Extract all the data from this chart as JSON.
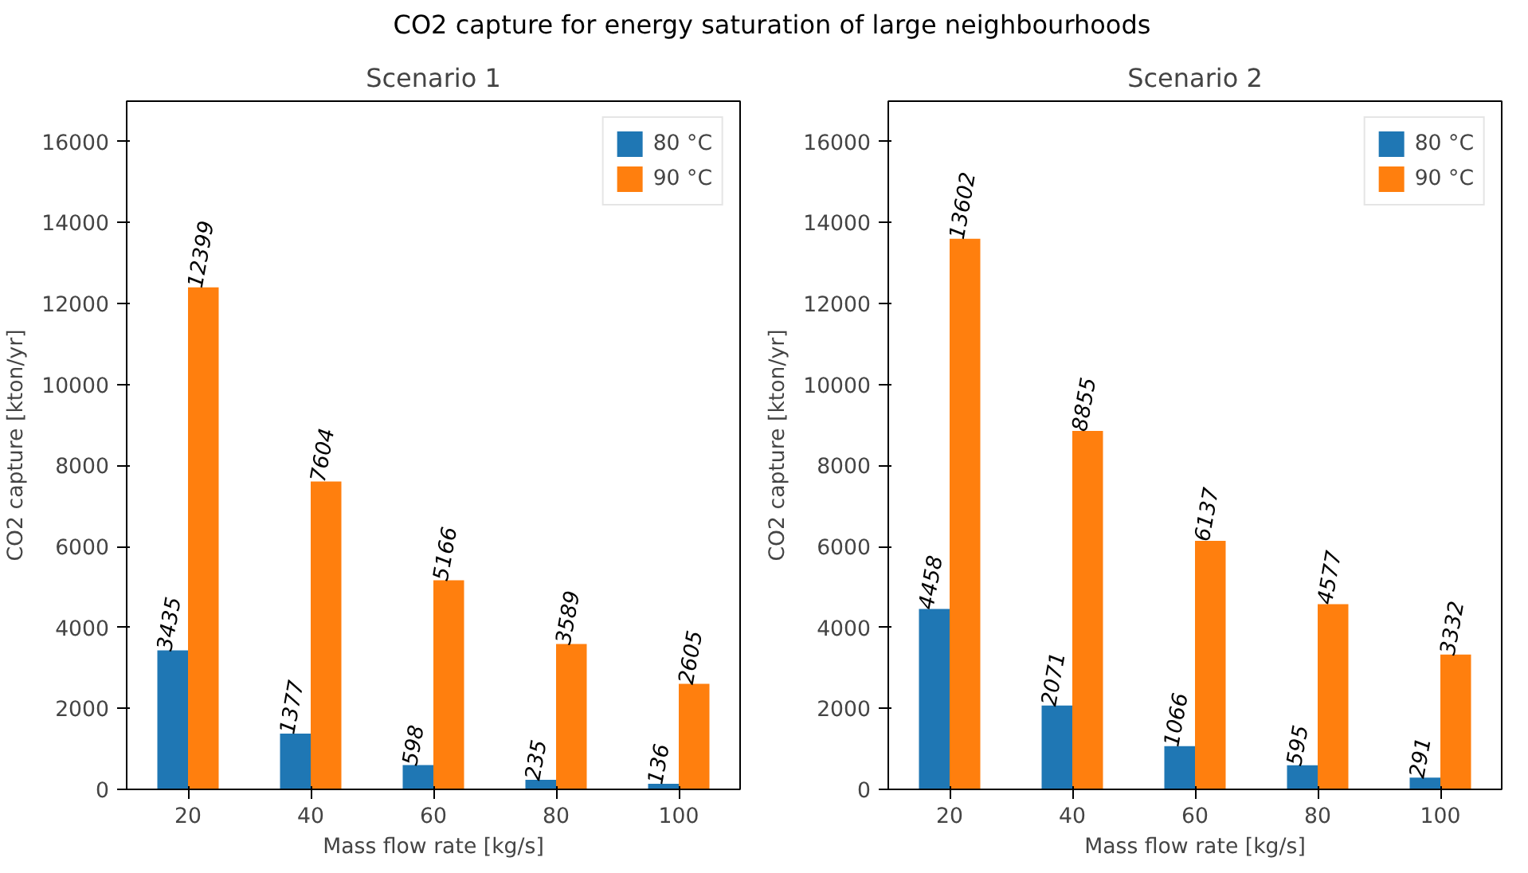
{
  "chart_data": [
    {
      "type": "bar",
      "title": "Scenario 1",
      "annotations": [
        "CO2 capture for energy saturation of large neighbourhoods"
      ],
      "xlabel": "Mass flow rate [kg/s]",
      "ylabel": "CO2 capture [kton/yr]",
      "categories": [
        "20",
        "40",
        "60",
        "80",
        "100"
      ],
      "series": [
        {
          "name": "80 °C",
          "color": "#1f77b4",
          "values": [
            3435,
            1377,
            598,
            235,
            136
          ]
        },
        {
          "name": "90 °C",
          "color": "#ff7f0e",
          "values": [
            12399,
            7604,
            5166,
            3589,
            2605
          ]
        }
      ],
      "ylim": [
        0,
        17000
      ],
      "yticks": [
        0,
        2000,
        4000,
        6000,
        8000,
        10000,
        12000,
        14000,
        16000
      ],
      "data_labels": true,
      "legend": "top right",
      "grid": false
    },
    {
      "type": "bar",
      "title": "Scenario 2",
      "xlabel": "Mass flow rate [kg/s]",
      "ylabel": "CO2 capture [kton/yr]",
      "categories": [
        "20",
        "40",
        "60",
        "80",
        "100"
      ],
      "series": [
        {
          "name": "80 °C",
          "color": "#1f77b4",
          "values": [
            4458,
            2071,
            1066,
            595,
            291
          ]
        },
        {
          "name": "90 °C",
          "color": "#ff7f0e",
          "values": [
            13602,
            8855,
            6137,
            4577,
            3332
          ]
        }
      ],
      "ylim": [
        0,
        17000
      ],
      "yticks": [
        0,
        2000,
        4000,
        6000,
        8000,
        10000,
        12000,
        14000,
        16000
      ],
      "data_labels": true,
      "legend": "top right",
      "grid": false
    }
  ]
}
